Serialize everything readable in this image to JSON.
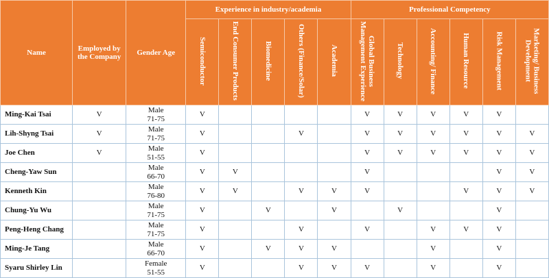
{
  "headers": {
    "name": "Name",
    "employed": "Employed by the Company",
    "gender_age": "Gender Age",
    "experience": "Experience in industry/academia",
    "competency": "Professional Competency",
    "exp_cols": [
      "Semiconductor",
      "End Consumer Products",
      "Biomedicine",
      "Others (Finance/Solar)",
      "Academia"
    ],
    "comp_cols": [
      "Global Business Management Experience",
      "Technology",
      "Accounting/ Finance",
      "Human Resource",
      "Risk Management",
      "Marketing/ Business Development"
    ]
  },
  "rows": [
    {
      "name": "Ming-Kai Tsai",
      "employed": "V",
      "gender": "Male",
      "age": "71-75",
      "exp": [
        "V",
        "",
        "",
        "",
        ""
      ],
      "comp": [
        "V",
        "V",
        "V",
        "V",
        "V",
        ""
      ]
    },
    {
      "name": "Lih-Shyng Tsai",
      "employed": "V",
      "gender": "Male",
      "age": "71-75",
      "exp": [
        "V",
        "",
        "",
        "V",
        ""
      ],
      "comp": [
        "V",
        "V",
        "V",
        "V",
        "V",
        "V"
      ]
    },
    {
      "name": "Joe Chen",
      "employed": "V",
      "gender": "Male",
      "age": "51-55",
      "exp": [
        "V",
        "",
        "",
        "",
        ""
      ],
      "comp": [
        "V",
        "V",
        "V",
        "V",
        "V",
        "V"
      ]
    },
    {
      "name": "Cheng-Yaw Sun",
      "employed": "",
      "gender": "Male",
      "age": "66-70",
      "exp": [
        "V",
        "V",
        "",
        "",
        ""
      ],
      "comp": [
        "V",
        "",
        "",
        "",
        "V",
        "V"
      ]
    },
    {
      "name": "Kenneth Kin",
      "employed": "",
      "gender": "Male",
      "age": "76-80",
      "exp": [
        "V",
        "V",
        "",
        "V",
        "V"
      ],
      "comp": [
        "V",
        "",
        "",
        "V",
        "V",
        "V"
      ]
    },
    {
      "name": "Chung-Yu Wu",
      "employed": "",
      "gender": "Male",
      "age": "71-75",
      "exp": [
        "V",
        "",
        "V",
        "",
        "V"
      ],
      "comp": [
        "",
        "V",
        "",
        "",
        "V",
        ""
      ]
    },
    {
      "name": "Peng-Heng Chang",
      "employed": "",
      "gender": "Male",
      "age": "71-75",
      "exp": [
        "V",
        "",
        "",
        "V",
        ""
      ],
      "comp": [
        "V",
        "",
        "V",
        "V",
        "V",
        ""
      ]
    },
    {
      "name": "Ming-Je Tang",
      "employed": "",
      "gender": "Male",
      "age": "66-70",
      "exp": [
        "V",
        "",
        "V",
        "V",
        "V"
      ],
      "comp": [
        "",
        "",
        "V",
        "",
        "V",
        ""
      ]
    },
    {
      "name": "Syaru Shirley Lin",
      "employed": "",
      "gender": "Female",
      "age": "51-55",
      "exp": [
        "V",
        "",
        "",
        "V",
        "V"
      ],
      "comp": [
        "V",
        "",
        "V",
        "",
        "V",
        ""
      ]
    }
  ]
}
